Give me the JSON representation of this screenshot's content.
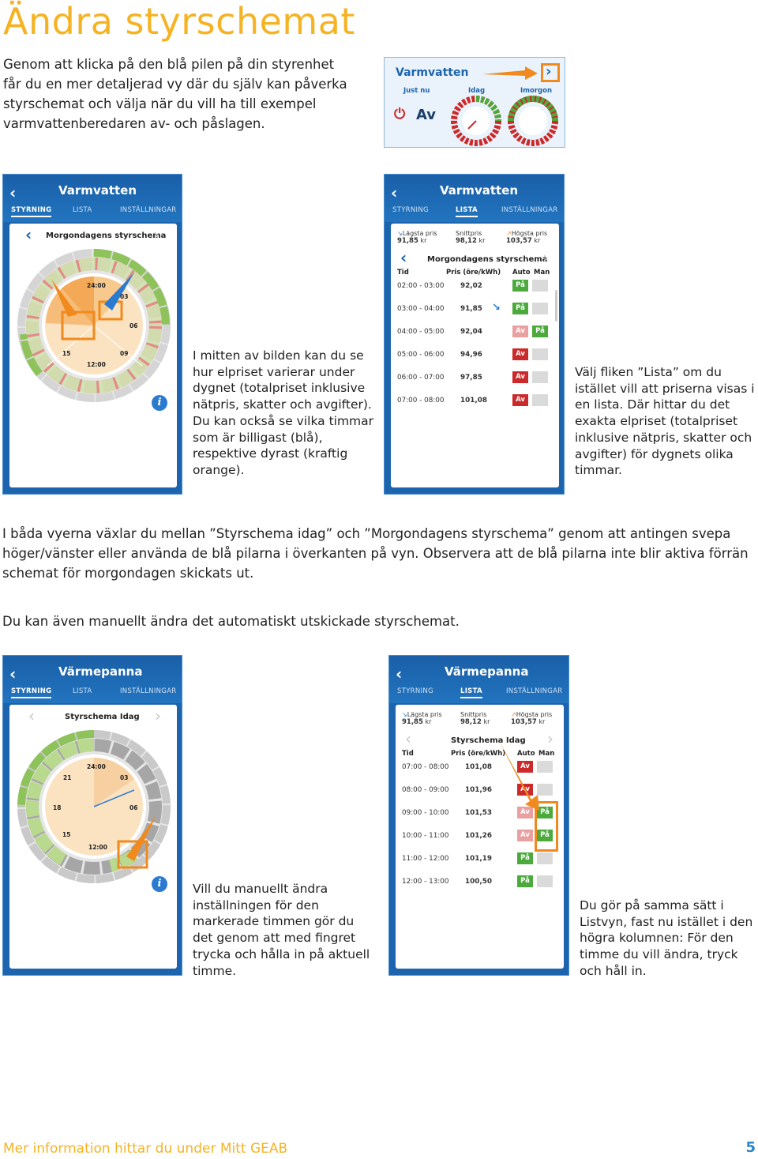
{
  "title": "Ändra styrschemat",
  "intro": "Genom att klicka på den blå pilen på din styrenhet får du en mer detaljerad vy där du själv kan påverka styrschemat och välja när du vill ha till exempel varmvattenberedaren av- och påslagen.",
  "widget": {
    "title": "Varmvatten",
    "just_nu": "Just nu",
    "idag": "Idag",
    "imorgon": "Imorgon",
    "state": "Av"
  },
  "tabs": {
    "styrning": "STYRNING",
    "lista": "LISTA",
    "installningar": "INSTÄLLNINGAR"
  },
  "screens": {
    "varmvatten": "Varmvatten",
    "varmepanna": "Värmepanna",
    "morgondagens": "Morgondagens styrschema",
    "idag": "Styrschema Idag"
  },
  "clock_labels": {
    "h24": "24:00",
    "h12": "12:00",
    "h03": "03",
    "h06": "06",
    "h09": "09",
    "h15": "15",
    "h18": "18",
    "h21": "21"
  },
  "list_header": {
    "tid": "Tid",
    "pris": "Pris (öre/kWh)",
    "auto": "Auto",
    "man": "Man"
  },
  "stats1": {
    "lagsta": "Lägsta pris",
    "lagsta_v": "91,85",
    "snitt": "Snittpris",
    "snitt_v": "98,12",
    "hogsta": "Högsta pris",
    "hogsta_v": "103,57",
    "kr": "kr"
  },
  "list1": [
    {
      "t": "02:00 - 03:00",
      "v": "92,02",
      "auto": "På",
      "man": ""
    },
    {
      "t": "03:00 - 04:00",
      "v": "91,85",
      "auto": "På",
      "man": ""
    },
    {
      "t": "04:00 - 05:00",
      "v": "92,04",
      "auto": "Av",
      "man": "På"
    },
    {
      "t": "05:00 - 06:00",
      "v": "94,96",
      "auto": "Av",
      "man": ""
    },
    {
      "t": "06:00 - 07:00",
      "v": "97,85",
      "auto": "Av",
      "man": ""
    },
    {
      "t": "07:00 - 08:00",
      "v": "101,08",
      "auto": "Av",
      "man": ""
    }
  ],
  "list2": [
    {
      "t": "07:00 - 08:00",
      "v": "101,08",
      "auto": "Av",
      "man": ""
    },
    {
      "t": "08:00 - 09:00",
      "v": "101,96",
      "auto": "Av",
      "man": ""
    },
    {
      "t": "09:00 - 10:00",
      "v": "101,53",
      "auto": "Av",
      "man": "På"
    },
    {
      "t": "10:00 - 11:00",
      "v": "101,26",
      "auto": "Av",
      "man": "På"
    },
    {
      "t": "11:00 - 12:00",
      "v": "101,19",
      "auto": "På",
      "man": ""
    },
    {
      "t": "12:00 - 13:00",
      "v": "100,50",
      "auto": "På",
      "man": ""
    }
  ],
  "text_mid": "I mitten av bilden kan du se hur elpriset varierar under dygnet (totalpriset inklusive nätpris, skatter och avgifter). Du kan också se vilka timmar som är billigast (blå), respektive dyrast (kraftig orange).",
  "text_lista": "Välj fliken ”Lista” om du istället vill att priserna visas i en lista. Där hittar du det exakta elpriset (totalpriset inklusive nätpris, skatter och avgifter) för dygnets olika timmar.",
  "para1": "I båda vyerna växlar du mellan ”Styrschema idag” och ”Morgondagens styrschema” genom att antingen svepa höger/vänster eller använda de blå pilarna i överkanten på vyn. Observera att de blå pilarna inte blir aktiva förrän schemat för morgondagen skickats ut.",
  "para2": "Du kan även manuellt ändra det automatiskt utskickade styrschemat.",
  "text_manuellt": "Vill du manuellt ändra inställningen för den markerade timmen gör du det genom att med fingret trycka och hålla in på aktuell timme.",
  "text_samma": "Du gör på samma sätt i Listvyn, fast nu istället i den högra kolumnen: För den timme du vill ändra, tryck och håll in.",
  "footer": "Mer information hittar du under Mitt GEAB",
  "page_number": "5",
  "colors": {
    "accent": "#f5b324",
    "blue": "#1c64ad",
    "green": "#4caa3c",
    "red": "#cc2a2a",
    "orange": "#f08a1e"
  }
}
